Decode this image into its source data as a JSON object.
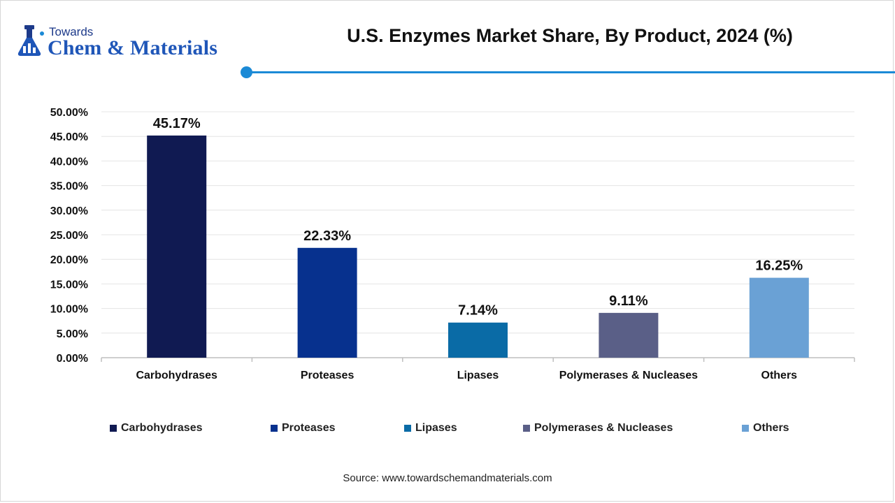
{
  "brand": {
    "line1": "Towards",
    "line2": "Chem & Materials"
  },
  "accent_color": "#1b8ad6",
  "footer": {
    "source": "Source: www.towardschemandmaterials.com"
  },
  "chart_data": {
    "type": "bar",
    "title": "U.S. Enzymes Market Share, By Product, 2024 (%)",
    "xlabel": "",
    "ylabel": "",
    "categories": [
      "Carbohydrases",
      "Proteases",
      "Lipases",
      "Polymerases & Nucleases",
      "Others"
    ],
    "values": [
      45.17,
      22.33,
      7.14,
      9.11,
      16.25
    ],
    "data_labels": [
      "45.17%",
      "22.33%",
      "7.14%",
      "9.11%",
      "16.25%"
    ],
    "colors": [
      "#101a52",
      "#07318e",
      "#0a6ba6",
      "#5a5f87",
      "#6aa1d5"
    ],
    "ylim": [
      0,
      50
    ],
    "yticks": [
      "0.00%",
      "5.00%",
      "10.00%",
      "15.00%",
      "20.00%",
      "25.00%",
      "30.00%",
      "35.00%",
      "40.00%",
      "45.00%",
      "50.00%"
    ],
    "grid": true,
    "legend": {
      "placement": "bottom",
      "entries": [
        "Carbohydrases",
        "Proteases",
        "Lipases",
        "Polymerases & Nucleases",
        "Others"
      ]
    }
  }
}
